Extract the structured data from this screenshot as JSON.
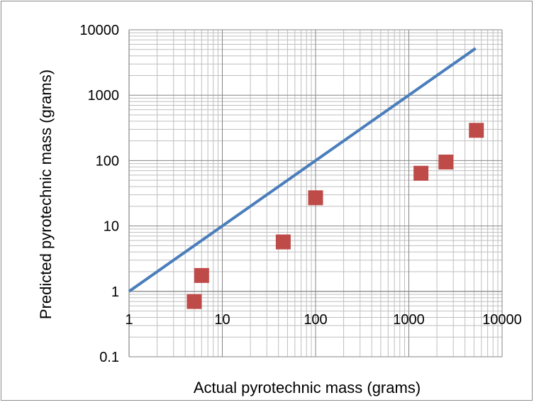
{
  "chart_data": {
    "type": "scatter",
    "title": "",
    "xlabel": "Actual  pyrotechnic mass (grams)",
    "ylabel": "Predicted pyrotechnic mass (grams)",
    "x_scale": "log",
    "y_scale": "log",
    "xlim": [
      1,
      10000
    ],
    "ylim": [
      0.1,
      10000
    ],
    "x_ticks": [
      "1",
      "10",
      "100",
      "1000",
      "10000"
    ],
    "y_ticks": [
      "0.1",
      "1",
      "10",
      "100",
      "1000",
      "10000"
    ],
    "grid": true,
    "legend": "none",
    "series": [
      {
        "type": "line",
        "color": "#4a7ebb",
        "x": [
          1,
          5200
        ],
        "y": [
          1,
          5200
        ]
      },
      {
        "type": "scatter",
        "marker": "square",
        "color": "#be4b48",
        "x": [
          5,
          6,
          45,
          100,
          1350,
          2500,
          5300
        ],
        "y": [
          0.7,
          1.75,
          5.7,
          27,
          64,
          95,
          290
        ]
      }
    ]
  }
}
